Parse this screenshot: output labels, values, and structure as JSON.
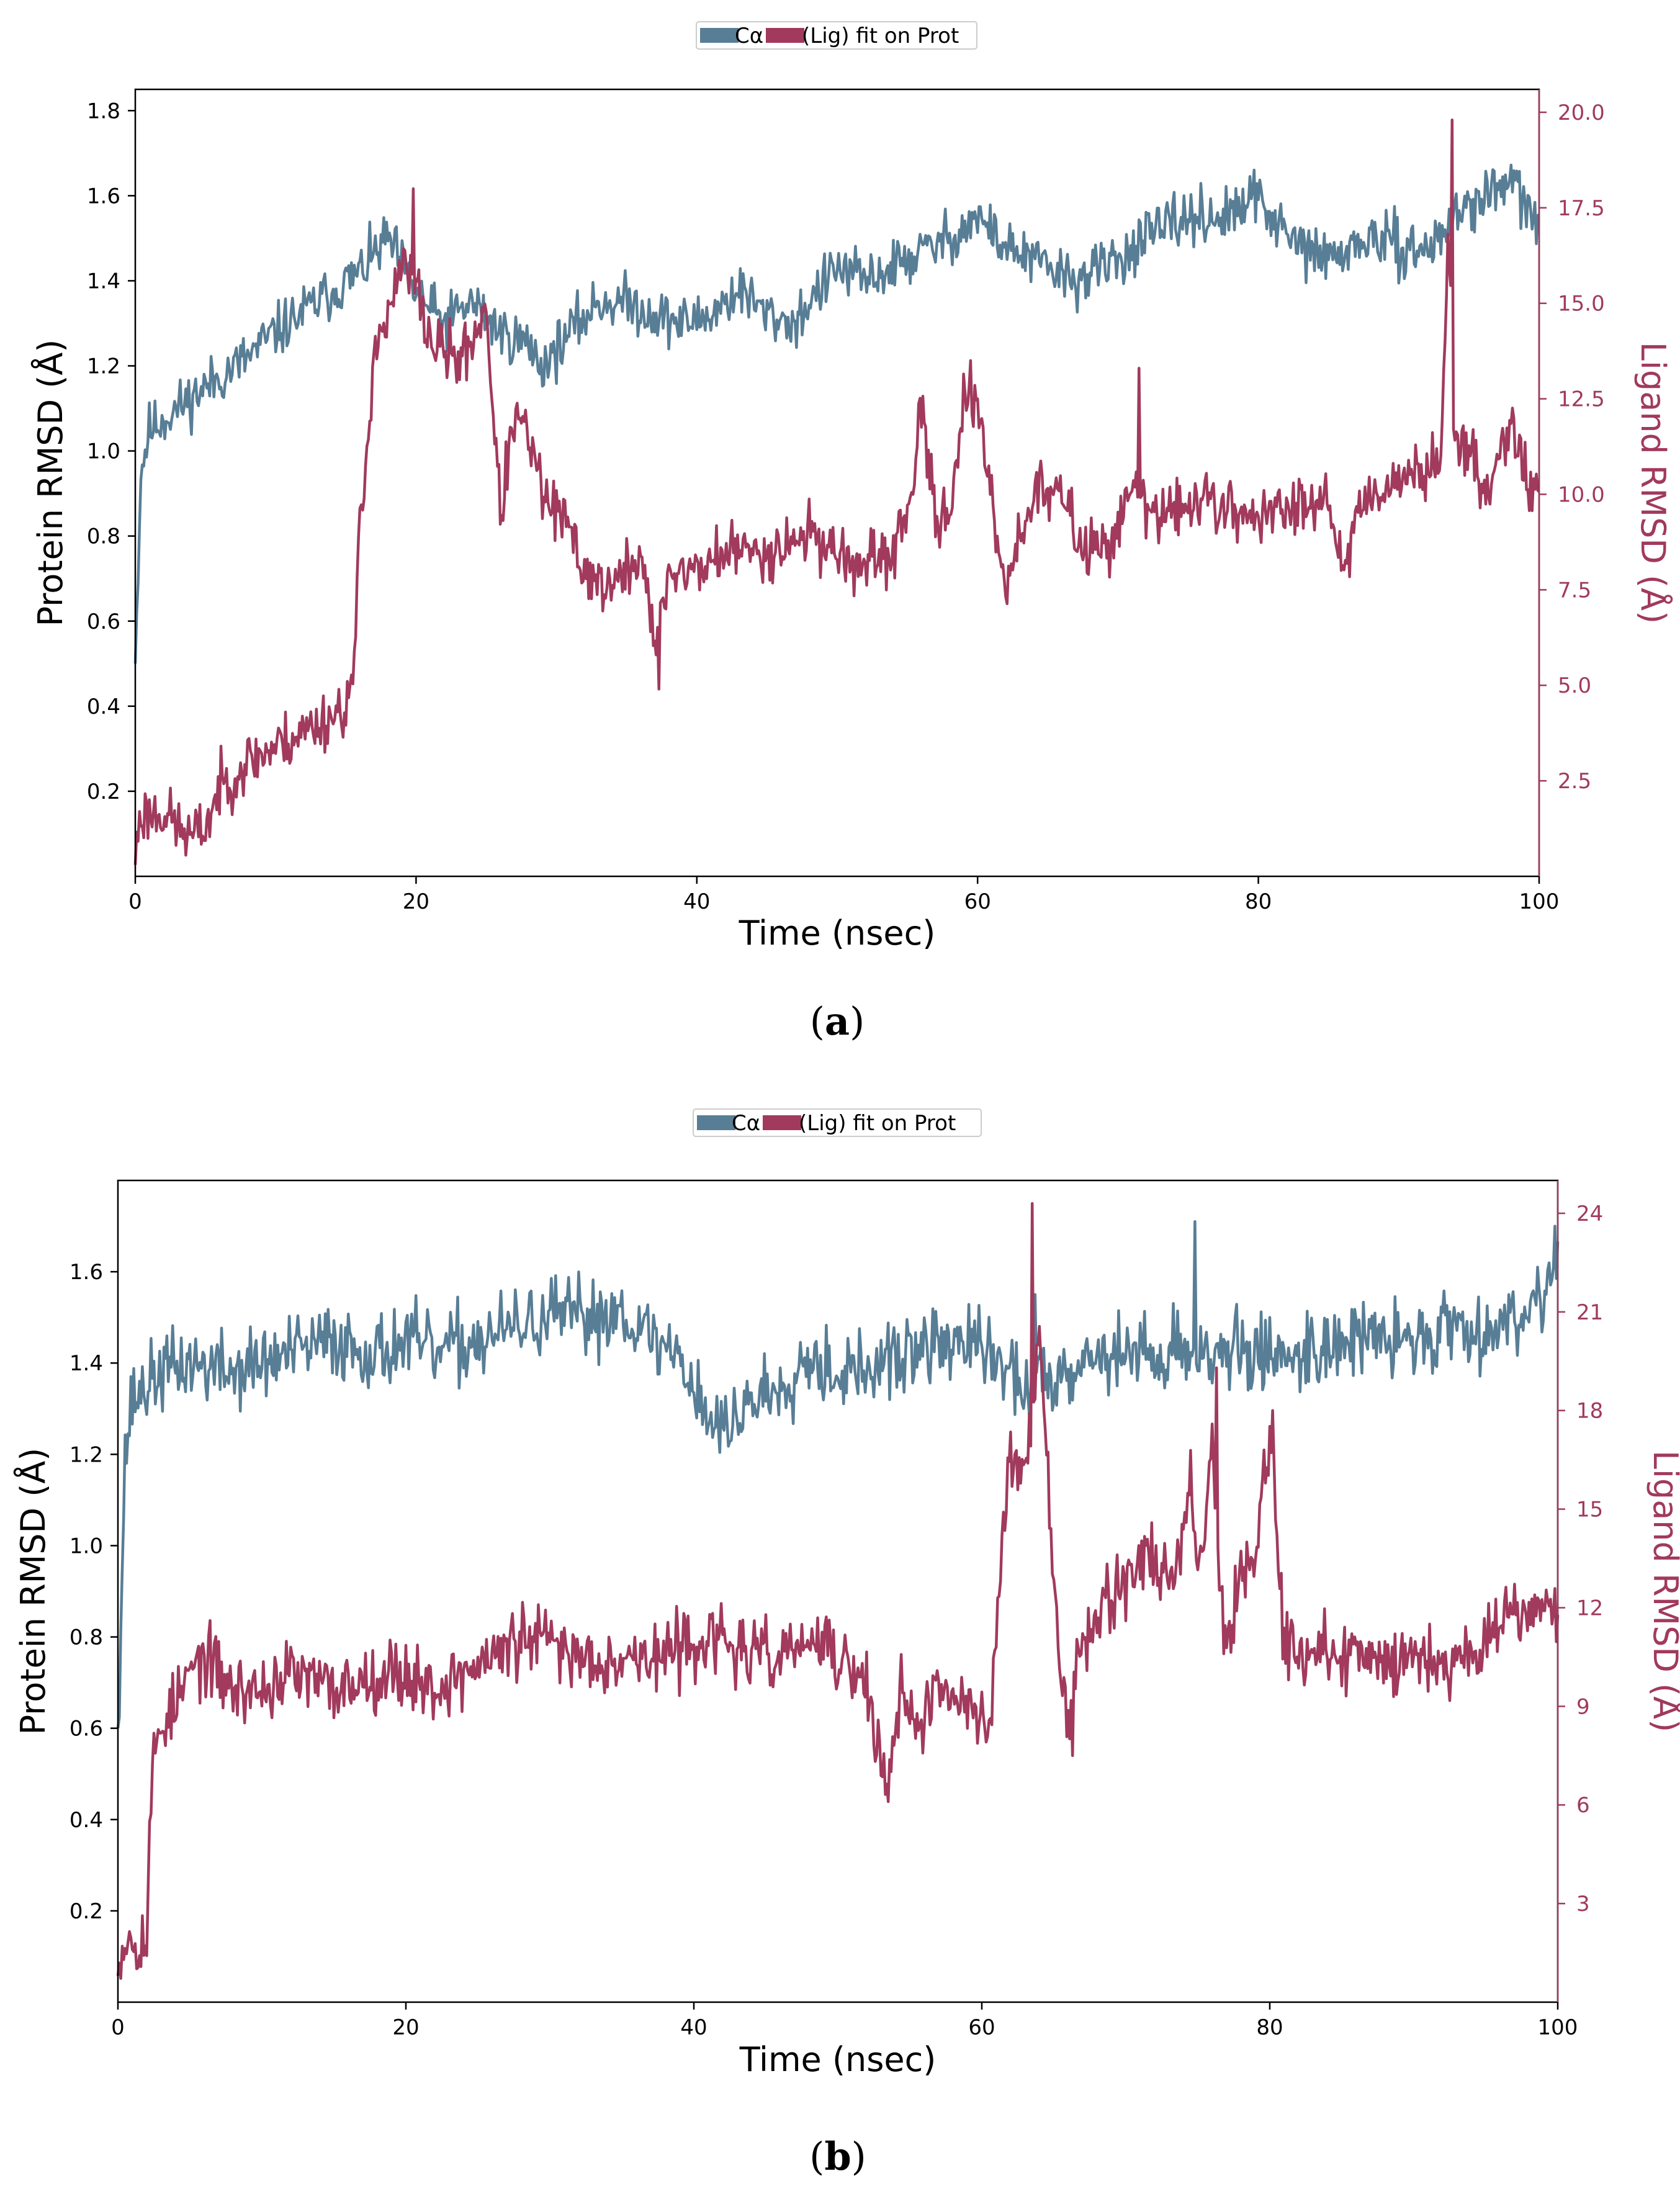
{
  "colors": {
    "protein": "#587e96",
    "ligand": "#a13a5c",
    "axis": "#000000",
    "legend_border": "#cccccc"
  },
  "chart_data": [
    {
      "type": "line",
      "caption_letter": "a",
      "caption_open": "(",
      "caption_close": ")",
      "legend": {
        "placement": "top-center",
        "series": [
          "Cα",
          "(Lig) fit on Prot"
        ]
      },
      "xlabel": "Time (nsec)",
      "ylabel_left": "Protein RMSD (Å)",
      "ylabel_right": "Ligand RMSD (Å)",
      "xlim": [
        0,
        100
      ],
      "ylim_left": [
        0.0,
        1.85
      ],
      "ylim_right": [
        0.0,
        20.6
      ],
      "xticks": [
        0,
        20,
        40,
        60,
        80,
        100
      ],
      "yticks_left": [
        0.2,
        0.4,
        0.6,
        0.8,
        1.0,
        1.2,
        1.4,
        1.6,
        1.8
      ],
      "yticks_right": [
        2.5,
        5.0,
        7.5,
        10.0,
        12.5,
        15.0,
        17.5,
        20.0
      ],
      "series": [
        {
          "name": "Cα",
          "axis": "left",
          "seed": 11,
          "noise": 0.045,
          "keypoints": [
            [
              0,
              0.5
            ],
            [
              0.4,
              0.95
            ],
            [
              1,
              1.05
            ],
            [
              3,
              1.1
            ],
            [
              5,
              1.15
            ],
            [
              8,
              1.22
            ],
            [
              10,
              1.28
            ],
            [
              13,
              1.35
            ],
            [
              16,
              1.42
            ],
            [
              18,
              1.5
            ],
            [
              20,
              1.37
            ],
            [
              22,
              1.3
            ],
            [
              24,
              1.35
            ],
            [
              26,
              1.28
            ],
            [
              28,
              1.25
            ],
            [
              29,
              1.2
            ],
            [
              31,
              1.28
            ],
            [
              33,
              1.35
            ],
            [
              35,
              1.35
            ],
            [
              37,
              1.32
            ],
            [
              39,
              1.3
            ],
            [
              41,
              1.32
            ],
            [
              43,
              1.38
            ],
            [
              45,
              1.32
            ],
            [
              47,
              1.3
            ],
            [
              48,
              1.35
            ],
            [
              50,
              1.43
            ],
            [
              52,
              1.4
            ],
            [
              55,
              1.45
            ],
            [
              58,
              1.5
            ],
            [
              60,
              1.55
            ],
            [
              62,
              1.48
            ],
            [
              65,
              1.43
            ],
            [
              67,
              1.4
            ],
            [
              70,
              1.45
            ],
            [
              72,
              1.5
            ],
            [
              75,
              1.55
            ],
            [
              78,
              1.55
            ],
            [
              80,
              1.6
            ],
            [
              82,
              1.5
            ],
            [
              85,
              1.45
            ],
            [
              88,
              1.5
            ],
            [
              90,
              1.48
            ],
            [
              92,
              1.47
            ],
            [
              94,
              1.55
            ],
            [
              96,
              1.6
            ],
            [
              98,
              1.63
            ],
            [
              100,
              1.53
            ]
          ]
        },
        {
          "name": "(Lig) fit on Prot",
          "axis": "right",
          "seed": 23,
          "noise": 0.55,
          "keypoints": [
            [
              0,
              0.3
            ],
            [
              0.3,
              1.6
            ],
            [
              2,
              1.7
            ],
            [
              3,
              1.3
            ],
            [
              4,
              1.0
            ],
            [
              5,
              1.3
            ],
            [
              6,
              2.3
            ],
            [
              8,
              3.0
            ],
            [
              10,
              3.4
            ],
            [
              12,
              3.8
            ],
            [
              14,
              4.2
            ],
            [
              15,
              4.5
            ],
            [
              15.5,
              5.0
            ],
            [
              16,
              9.0
            ],
            [
              16.5,
              11.0
            ],
            [
              17,
              14.0
            ],
            [
              18,
              14.5
            ],
            [
              19,
              16.0
            ],
            [
              20,
              15.5
            ],
            [
              21,
              14.0
            ],
            [
              23,
              13.5
            ],
            [
              24,
              14.0
            ],
            [
              25,
              15.0
            ],
            [
              25.6,
              11.5
            ],
            [
              26,
              9.5
            ],
            [
              27,
              12.0
            ],
            [
              28,
              11.5
            ],
            [
              29,
              10.0
            ],
            [
              30,
              9.5
            ],
            [
              31,
              9.0
            ],
            [
              32,
              8.0
            ],
            [
              34,
              7.5
            ],
            [
              36,
              8.5
            ],
            [
              37,
              6.0
            ],
            [
              38,
              8.0
            ],
            [
              40,
              8.0
            ],
            [
              42,
              8.5
            ],
            [
              45,
              8.5
            ],
            [
              48,
              9.0
            ],
            [
              50,
              8.5
            ],
            [
              52,
              8.0
            ],
            [
              54,
              8.5
            ],
            [
              55,
              9.5
            ],
            [
              56,
              12.0
            ],
            [
              57,
              9.5
            ],
            [
              58,
              9.5
            ],
            [
              59,
              12.5
            ],
            [
              60,
              12.0
            ],
            [
              61,
              10.0
            ],
            [
              62,
              7.5
            ],
            [
              63,
              9.0
            ],
            [
              64,
              10.0
            ],
            [
              66,
              10.0
            ],
            [
              67,
              9.0
            ],
            [
              68,
              8.5
            ],
            [
              70,
              9.0
            ],
            [
              71,
              10.5
            ],
            [
              72,
              9.5
            ],
            [
              74,
              9.5
            ],
            [
              76,
              10.0
            ],
            [
              78,
              9.5
            ],
            [
              80,
              9.5
            ],
            [
              82,
              9.5
            ],
            [
              84,
              10.0
            ],
            [
              85,
              10.0
            ],
            [
              86,
              8.0
            ],
            [
              87,
              9.5
            ],
            [
              88,
              10.0
            ],
            [
              90,
              10.5
            ],
            [
              92,
              10.5
            ],
            [
              93,
              11.0
            ],
            [
              93.5,
              17.0
            ],
            [
              94,
              11.5
            ],
            [
              95,
              11.0
            ],
            [
              96,
              10.0
            ],
            [
              97,
              11.0
            ],
            [
              98,
              12.0
            ],
            [
              99,
              10.5
            ],
            [
              100,
              10.0
            ]
          ],
          "spikes": [
            [
              93.8,
              19.8
            ],
            [
              59.5,
              13.5
            ],
            [
              71.5,
              13.3
            ],
            [
              19.8,
              18.0
            ],
            [
              37.3,
              4.9
            ]
          ]
        }
      ]
    },
    {
      "type": "line",
      "caption_letter": "b",
      "caption_open": "(",
      "caption_close": ")",
      "legend": {
        "placement": "top-center",
        "series": [
          "Cα",
          "(Lig) fit on Prot"
        ]
      },
      "xlabel": "Time (nsec)",
      "ylabel_left": "Protein RMSD (Å)",
      "ylabel_right": "Ligand RMSD (Å)",
      "xlim": [
        0,
        100
      ],
      "ylim_left": [
        0.0,
        1.8
      ],
      "ylim_right": [
        0.0,
        25.0
      ],
      "xticks": [
        0,
        20,
        40,
        60,
        80,
        100
      ],
      "yticks_left": [
        0.2,
        0.4,
        0.6,
        0.8,
        1.0,
        1.2,
        1.4,
        1.6
      ],
      "yticks_right": [
        3,
        6,
        9,
        12,
        15,
        18,
        21,
        24
      ],
      "series": [
        {
          "name": "Cα",
          "axis": "left",
          "seed": 37,
          "noise": 0.06,
          "keypoints": [
            [
              0,
              0.6
            ],
            [
              0.5,
              1.2
            ],
            [
              1,
              1.32
            ],
            [
              3,
              1.38
            ],
            [
              5,
              1.4
            ],
            [
              8,
              1.38
            ],
            [
              10,
              1.4
            ],
            [
              12,
              1.42
            ],
            [
              15,
              1.45
            ],
            [
              18,
              1.42
            ],
            [
              20,
              1.45
            ],
            [
              22,
              1.42
            ],
            [
              25,
              1.45
            ],
            [
              28,
              1.48
            ],
            [
              30,
              1.5
            ],
            [
              33,
              1.5
            ],
            [
              35,
              1.52
            ],
            [
              37,
              1.45
            ],
            [
              39,
              1.42
            ],
            [
              40,
              1.35
            ],
            [
              41,
              1.28
            ],
            [
              42,
              1.25
            ],
            [
              44,
              1.32
            ],
            [
              46,
              1.35
            ],
            [
              48,
              1.42
            ],
            [
              50,
              1.38
            ],
            [
              52,
              1.38
            ],
            [
              55,
              1.42
            ],
            [
              58,
              1.45
            ],
            [
              60,
              1.43
            ],
            [
              63,
              1.35
            ],
            [
              65,
              1.38
            ],
            [
              68,
              1.42
            ],
            [
              70,
              1.42
            ],
            [
              72,
              1.42
            ],
            [
              75,
              1.43
            ],
            [
              78,
              1.42
            ],
            [
              80,
              1.42
            ],
            [
              82,
              1.42
            ],
            [
              85,
              1.45
            ],
            [
              88,
              1.45
            ],
            [
              90,
              1.45
            ],
            [
              92,
              1.48
            ],
            [
              94,
              1.48
            ],
            [
              96,
              1.48
            ],
            [
              98,
              1.52
            ],
            [
              100,
              1.62
            ]
          ],
          "spikes": [
            [
              74.8,
              1.71
            ],
            [
              99.8,
              1.7
            ],
            [
              63.7,
              1.55
            ]
          ]
        },
        {
          "name": "(Lig) fit on Prot",
          "axis": "right",
          "seed": 53,
          "noise": 0.75,
          "keypoints": [
            [
              0,
              0.8
            ],
            [
              0.4,
              2.0
            ],
            [
              2,
              1.9
            ],
            [
              2.2,
              5.0
            ],
            [
              2.5,
              7.5
            ],
            [
              3,
              8.5
            ],
            [
              4,
              9.0
            ],
            [
              5,
              10.0
            ],
            [
              6,
              10.5
            ],
            [
              8,
              9.5
            ],
            [
              10,
              9.5
            ],
            [
              12,
              10.0
            ],
            [
              15,
              9.5
            ],
            [
              18,
              10.0
            ],
            [
              20,
              10.0
            ],
            [
              22,
              9.5
            ],
            [
              24,
              10.0
            ],
            [
              26,
              10.5
            ],
            [
              28,
              11.0
            ],
            [
              30,
              11.0
            ],
            [
              32,
              10.5
            ],
            [
              35,
              10.5
            ],
            [
              38,
              10.5
            ],
            [
              40,
              11.0
            ],
            [
              42,
              11.0
            ],
            [
              44,
              10.5
            ],
            [
              46,
              10.5
            ],
            [
              48,
              11.0
            ],
            [
              50,
              10.5
            ],
            [
              52,
              9.5
            ],
            [
              53.5,
              6.5
            ],
            [
              54.5,
              10.0
            ],
            [
              55.5,
              8.0
            ],
            [
              57,
              9.5
            ],
            [
              59,
              9.0
            ],
            [
              60.5,
              8.5
            ],
            [
              61,
              11.0
            ],
            [
              61.5,
              15.0
            ],
            [
              62,
              16.5
            ],
            [
              63,
              16.0
            ],
            [
              63.5,
              18.0
            ],
            [
              64,
              20.0
            ],
            [
              64.5,
              17.0
            ],
            [
              65,
              12.0
            ],
            [
              65.5,
              10.0
            ],
            [
              66,
              9.0
            ],
            [
              67,
              11.0
            ],
            [
              68,
              12.0
            ],
            [
              70,
              13.0
            ],
            [
              72,
              13.5
            ],
            [
              73,
              13.0
            ],
            [
              74,
              14.0
            ],
            [
              74.5,
              16.0
            ],
            [
              75,
              13.0
            ],
            [
              76,
              17.0
            ],
            [
              76.5,
              13.0
            ],
            [
              77,
              11.0
            ],
            [
              78,
              13.0
            ],
            [
              79,
              14.0
            ],
            [
              80,
              17.5
            ],
            [
              80.5,
              14.0
            ],
            [
              81,
              11.0
            ],
            [
              83,
              10.5
            ],
            [
              86,
              10.5
            ],
            [
              89,
              10.5
            ],
            [
              92,
              10.5
            ],
            [
              94,
              10.5
            ],
            [
              95,
              11.0
            ],
            [
              96,
              12.0
            ],
            [
              98,
              12.0
            ],
            [
              100,
              12.0
            ]
          ],
          "spikes": [
            [
              63.5,
              24.3
            ],
            [
              76.3,
              19.3
            ],
            [
              80.2,
              18.0
            ],
            [
              66.3,
              7.5
            ],
            [
              53.5,
              6.1
            ]
          ]
        }
      ]
    }
  ]
}
